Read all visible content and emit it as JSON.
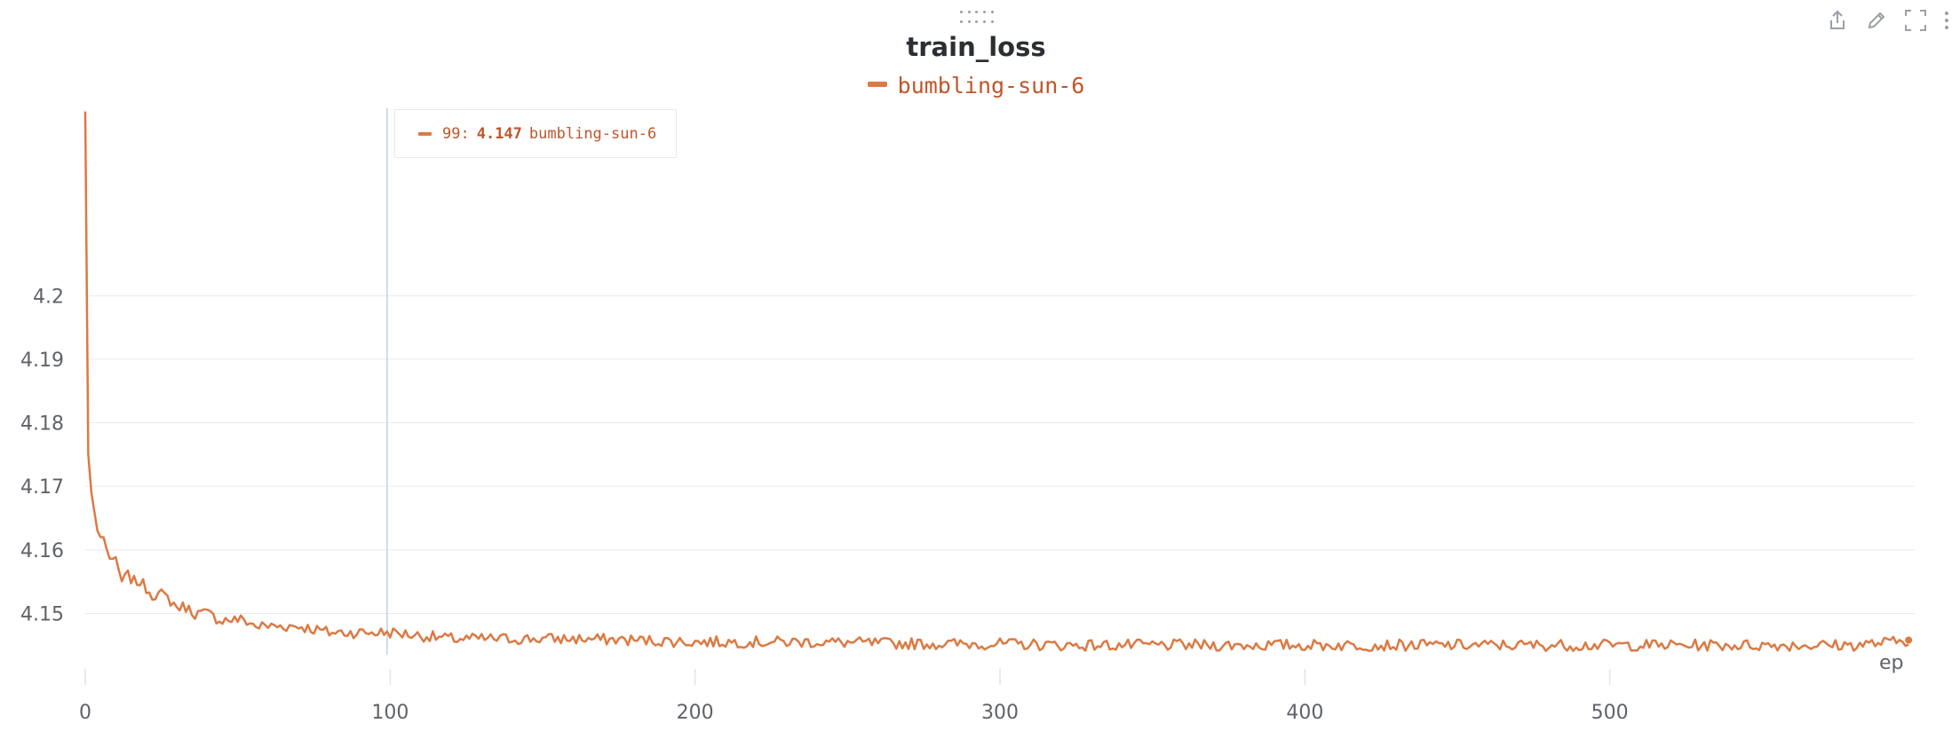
{
  "panel": {
    "title": "train_loss",
    "toolbar": [
      "share-icon",
      "edit-icon",
      "fullscreen-icon",
      "more-icon"
    ],
    "edge_label": "ep"
  },
  "colors": {
    "series": "#db7a44",
    "tooltip_text": "#c0562a",
    "grid": "#e8eaed",
    "hover_line": "#bcd3e6",
    "tick_text": "#5f6368"
  },
  "legend": [
    {
      "name": "bumbling-sun-6"
    }
  ],
  "tooltip": {
    "step": "99:",
    "value": "4.147",
    "run": "bumbling-sun-6"
  },
  "chart_data": {
    "type": "line",
    "title": "train_loss",
    "xlabel": "",
    "ylabel": "",
    "xlim": [
      0,
      600
    ],
    "ylim": [
      4.1435,
      4.2295
    ],
    "xticks": [
      0,
      100,
      200,
      300,
      400,
      500
    ],
    "yticks": [
      4.15,
      4.16,
      4.17,
      4.18,
      4.19,
      4.2
    ],
    "ytick_labels": [
      "4.15",
      "4.16",
      "4.17",
      "4.18",
      "4.19",
      "4.2"
    ],
    "grid": true,
    "legend_position": "top-center",
    "hover_step": 99,
    "series": [
      {
        "name": "bumbling-sun-6",
        "x": [
          0,
          1,
          2,
          3,
          4,
          5,
          6,
          7,
          8,
          10,
          12,
          14,
          16,
          18,
          20,
          22,
          25,
          28,
          30,
          33,
          36,
          40,
          44,
          48,
          52,
          56,
          60,
          70,
          80,
          90,
          100,
          110,
          120,
          140,
          160,
          180,
          200,
          220,
          240,
          260,
          280,
          300,
          320,
          340,
          360,
          380,
          400,
          420,
          440,
          460,
          480,
          500,
          520,
          540,
          560,
          580,
          600
        ],
        "y": [
          4.229,
          4.175,
          4.169,
          4.166,
          4.163,
          4.162,
          4.162,
          4.16,
          4.159,
          4.158,
          4.155,
          4.156,
          4.155,
          4.155,
          4.154,
          4.153,
          4.153,
          4.152,
          4.151,
          4.151,
          4.15,
          4.15,
          4.149,
          4.149,
          4.149,
          4.148,
          4.148,
          4.148,
          4.147,
          4.147,
          4.147,
          4.1465,
          4.146,
          4.146,
          4.146,
          4.1458,
          4.1455,
          4.1455,
          4.1455,
          4.1453,
          4.1452,
          4.1452,
          4.145,
          4.145,
          4.145,
          4.145,
          4.145,
          4.145,
          4.145,
          4.145,
          4.145,
          4.145,
          4.145,
          4.145,
          4.145,
          4.145,
          4.1458
        ]
      }
    ]
  }
}
